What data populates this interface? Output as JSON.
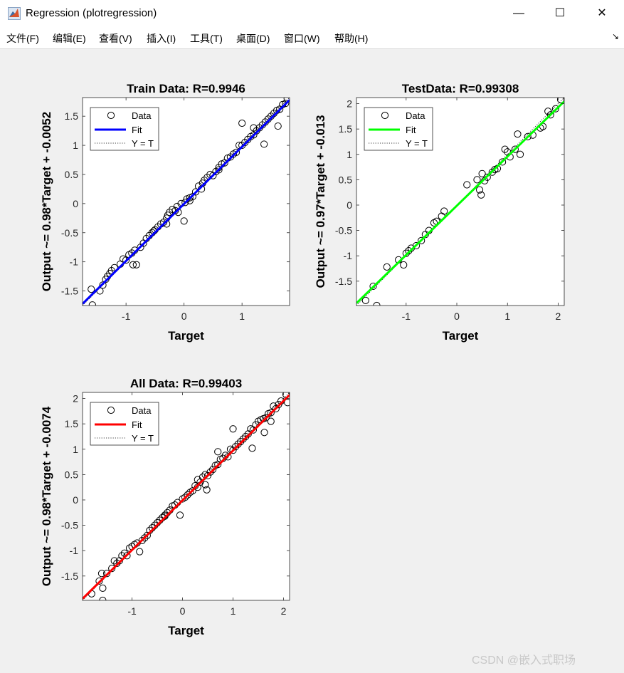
{
  "window": {
    "title": "Regression (plotregression)",
    "controls": {
      "minimize": "—",
      "maximize": "☐",
      "close": "✕"
    }
  },
  "menu": [
    "文件(F)",
    "编辑(E)",
    "查看(V)",
    "插入(I)",
    "工具(T)",
    "桌面(D)",
    "窗口(W)",
    "帮助(H)"
  ],
  "menu_extra_icon": "↘",
  "legend_labels": {
    "data": "Data",
    "fit": "Fit",
    "identity": "Y = T"
  },
  "chart_data": [
    {
      "type": "scatter",
      "title": "Train Data: R=0.9946",
      "xlabel": "Target",
      "ylabel": "Output ~= 0.98*Target + -0.0052",
      "xlim": [
        -1.75,
        1.82
      ],
      "ylim": [
        -1.75,
        1.82
      ],
      "xticks": [
        -1,
        0,
        1
      ],
      "xtick_labels": [
        "-1",
        "0",
        "1"
      ],
      "yticks": [
        -1.5,
        -1,
        -0.5,
        0,
        0.5,
        1,
        1.5
      ],
      "ytick_labels": [
        "-1.5",
        "-1",
        "-0.5",
        "0",
        "0.5",
        "1",
        "1.5"
      ],
      "fit": {
        "slope": 0.98,
        "intercept": -0.0052,
        "color": "#0000ff"
      },
      "legend_position": "top-left",
      "points": [
        [
          -1.6,
          -1.47
        ],
        [
          -1.58,
          -1.74
        ],
        [
          -1.45,
          -1.5
        ],
        [
          -1.4,
          -1.4
        ],
        [
          -1.35,
          -1.3
        ],
        [
          -1.32,
          -1.25
        ],
        [
          -1.28,
          -1.2
        ],
        [
          -1.25,
          -1.15
        ],
        [
          -1.2,
          -1.1
        ],
        [
          -1.1,
          -1.04
        ],
        [
          -1.05,
          -0.95
        ],
        [
          -1.0,
          -0.97
        ],
        [
          -0.95,
          -0.88
        ],
        [
          -0.9,
          -0.85
        ],
        [
          -0.88,
          -1.05
        ],
        [
          -0.85,
          -0.8
        ],
        [
          -0.82,
          -1.05
        ],
        [
          -0.75,
          -0.75
        ],
        [
          -0.7,
          -0.68
        ],
        [
          -0.65,
          -0.6
        ],
        [
          -0.6,
          -0.55
        ],
        [
          -0.55,
          -0.5
        ],
        [
          -0.52,
          -0.47
        ],
        [
          -0.5,
          -0.45
        ],
        [
          -0.45,
          -0.4
        ],
        [
          -0.4,
          -0.35
        ],
        [
          -0.35,
          -0.32
        ],
        [
          -0.3,
          -0.25
        ],
        [
          -0.28,
          -0.2
        ],
        [
          -0.25,
          -0.15
        ],
        [
          -0.2,
          -0.1
        ],
        [
          -0.15,
          -0.12
        ],
        [
          -0.12,
          -0.05
        ],
        [
          -0.1,
          -0.15
        ],
        [
          -0.05,
          0.0
        ],
        [
          0.0,
          -0.3
        ],
        [
          0.02,
          0.02
        ],
        [
          0.05,
          0.08
        ],
        [
          0.1,
          0.1
        ],
        [
          0.15,
          0.12
        ],
        [
          0.2,
          0.2
        ],
        [
          0.25,
          0.3
        ],
        [
          0.3,
          0.25
        ],
        [
          0.32,
          0.35
        ],
        [
          0.35,
          0.4
        ],
        [
          0.4,
          0.45
        ],
        [
          0.45,
          0.5
        ],
        [
          0.5,
          0.48
        ],
        [
          0.55,
          0.55
        ],
        [
          0.6,
          0.62
        ],
        [
          0.65,
          0.68
        ],
        [
          0.7,
          0.7
        ],
        [
          0.75,
          0.78
        ],
        [
          0.8,
          0.8
        ],
        [
          0.85,
          0.85
        ],
        [
          0.9,
          0.88
        ],
        [
          0.95,
          1.0
        ],
        [
          1.0,
          1.0
        ],
        [
          1.05,
          1.05
        ],
        [
          1.1,
          1.1
        ],
        [
          1.15,
          1.15
        ],
        [
          1.2,
          1.18
        ],
        [
          1.25,
          1.25
        ],
        [
          1.3,
          1.3
        ],
        [
          1.35,
          1.35
        ],
        [
          1.4,
          1.4
        ],
        [
          1.45,
          1.45
        ],
        [
          1.5,
          1.5
        ],
        [
          1.55,
          1.55
        ],
        [
          1.6,
          1.6
        ],
        [
          1.65,
          1.62
        ],
        [
          1.7,
          1.7
        ],
        [
          1.75,
          1.72
        ],
        [
          1.78,
          1.8
        ],
        [
          1.0,
          1.38
        ],
        [
          1.38,
          1.02
        ],
        [
          1.62,
          1.33
        ],
        [
          0.1,
          0.05
        ],
        [
          -0.3,
          -0.35
        ],
        [
          0.6,
          0.58
        ],
        [
          1.2,
          1.3
        ]
      ]
    },
    {
      "type": "scatter",
      "title": "TestData: R=0.99308",
      "xlabel": "Target",
      "ylabel": "Output ~= 0.97*Target + -0.013",
      "xlim": [
        -1.98,
        2.12
      ],
      "ylim": [
        -1.98,
        2.12
      ],
      "xticks": [
        -1,
        0,
        1,
        2
      ],
      "xtick_labels": [
        "-1",
        "0",
        "1",
        "2"
      ],
      "yticks": [
        -1.5,
        -1,
        -0.5,
        0,
        0.5,
        1,
        1.5,
        2
      ],
      "ytick_labels": [
        "-1.5",
        "-1",
        "-0.5",
        "0",
        "0.5",
        "1",
        "1.5",
        "2"
      ],
      "fit": {
        "slope": 0.97,
        "intercept": -0.013,
        "color": "#00ff00"
      },
      "legend_position": "top-left",
      "points": [
        [
          -1.8,
          -1.88
        ],
        [
          -1.65,
          -1.6
        ],
        [
          -1.58,
          -1.98
        ],
        [
          -1.38,
          -1.22
        ],
        [
          -1.15,
          -1.08
        ],
        [
          -1.05,
          -1.18
        ],
        [
          -1.0,
          -0.95
        ],
        [
          -0.95,
          -0.9
        ],
        [
          -0.9,
          -0.85
        ],
        [
          -0.8,
          -0.8
        ],
        [
          -0.7,
          -0.7
        ],
        [
          -0.62,
          -0.58
        ],
        [
          -0.55,
          -0.5
        ],
        [
          -0.45,
          -0.35
        ],
        [
          -0.4,
          -0.32
        ],
        [
          -0.3,
          -0.22
        ],
        [
          -0.25,
          -0.12
        ],
        [
          0.2,
          0.4
        ],
        [
          0.4,
          0.5
        ],
        [
          0.45,
          0.3
        ],
        [
          0.48,
          0.2
        ],
        [
          0.5,
          0.62
        ],
        [
          0.55,
          0.48
        ],
        [
          0.6,
          0.55
        ],
        [
          0.7,
          0.65
        ],
        [
          0.75,
          0.7
        ],
        [
          0.8,
          0.72
        ],
        [
          0.9,
          0.85
        ],
        [
          0.95,
          1.1
        ],
        [
          1.0,
          1.05
        ],
        [
          1.05,
          0.95
        ],
        [
          1.15,
          1.1
        ],
        [
          1.2,
          1.4
        ],
        [
          1.25,
          1.0
        ],
        [
          1.4,
          1.35
        ],
        [
          1.5,
          1.38
        ],
        [
          1.65,
          1.52
        ],
        [
          1.7,
          1.55
        ],
        [
          1.8,
          1.85
        ],
        [
          1.85,
          1.78
        ],
        [
          1.95,
          1.9
        ],
        [
          2.05,
          2.08
        ]
      ]
    },
    {
      "type": "scatter",
      "title": "All Data: R=0.99403",
      "xlabel": "Target",
      "ylabel": "Output ~= 0.98*Target + -0.0074",
      "xlim": [
        -1.98,
        2.12
      ],
      "ylim": [
        -1.98,
        2.12
      ],
      "xticks": [
        -1,
        0,
        1,
        2
      ],
      "xtick_labels": [
        "-1",
        "0",
        "1",
        "2"
      ],
      "yticks": [
        -1.5,
        -1,
        -0.5,
        0,
        0.5,
        1,
        1.5,
        2
      ],
      "ytick_labels": [
        "-1.5",
        "-1",
        "-0.5",
        "0",
        "0.5",
        "1",
        "1.5",
        "2"
      ],
      "fit": {
        "slope": 0.98,
        "intercept": -0.0074,
        "color": "#ff0000"
      },
      "legend_position": "top-left",
      "points": [
        [
          -1.8,
          -1.85
        ],
        [
          -1.65,
          -1.6
        ],
        [
          -1.58,
          -1.98
        ],
        [
          -1.6,
          -1.45
        ],
        [
          -1.58,
          -1.74
        ],
        [
          -1.5,
          -1.45
        ],
        [
          -1.4,
          -1.35
        ],
        [
          -1.35,
          -1.2
        ],
        [
          -1.3,
          -1.25
        ],
        [
          -1.25,
          -1.2
        ],
        [
          -1.2,
          -1.1
        ],
        [
          -1.15,
          -1.05
        ],
        [
          -1.1,
          -1.1
        ],
        [
          -1.05,
          -0.95
        ],
        [
          -1.0,
          -0.92
        ],
        [
          -0.95,
          -0.88
        ],
        [
          -0.9,
          -0.85
        ],
        [
          -0.85,
          -1.02
        ],
        [
          -0.8,
          -0.8
        ],
        [
          -0.75,
          -0.75
        ],
        [
          -0.7,
          -0.7
        ],
        [
          -0.65,
          -0.6
        ],
        [
          -0.6,
          -0.55
        ],
        [
          -0.55,
          -0.5
        ],
        [
          -0.5,
          -0.45
        ],
        [
          -0.45,
          -0.4
        ],
        [
          -0.4,
          -0.35
        ],
        [
          -0.35,
          -0.3
        ],
        [
          -0.3,
          -0.25
        ],
        [
          -0.25,
          -0.2
        ],
        [
          -0.2,
          -0.12
        ],
        [
          -0.15,
          -0.1
        ],
        [
          -0.1,
          -0.05
        ],
        [
          -0.05,
          -0.3
        ],
        [
          0.0,
          0.02
        ],
        [
          0.05,
          0.05
        ],
        [
          0.1,
          0.1
        ],
        [
          0.15,
          0.15
        ],
        [
          0.2,
          0.18
        ],
        [
          0.25,
          0.28
        ],
        [
          0.3,
          0.25
        ],
        [
          0.35,
          0.35
        ],
        [
          0.4,
          0.45
        ],
        [
          0.45,
          0.5
        ],
        [
          0.5,
          0.48
        ],
        [
          0.55,
          0.55
        ],
        [
          0.6,
          0.6
        ],
        [
          0.65,
          0.68
        ],
        [
          0.7,
          0.7
        ],
        [
          0.75,
          0.8
        ],
        [
          0.8,
          0.82
        ],
        [
          0.85,
          0.88
        ],
        [
          0.9,
          0.85
        ],
        [
          0.95,
          1.0
        ],
        [
          1.0,
          0.98
        ],
        [
          1.05,
          1.05
        ],
        [
          1.1,
          1.1
        ],
        [
          1.15,
          1.15
        ],
        [
          1.2,
          1.2
        ],
        [
          1.25,
          1.25
        ],
        [
          1.3,
          1.3
        ],
        [
          1.35,
          1.4
        ],
        [
          1.4,
          1.38
        ],
        [
          1.45,
          1.48
        ],
        [
          1.5,
          1.55
        ],
        [
          1.55,
          1.58
        ],
        [
          1.6,
          1.6
        ],
        [
          1.65,
          1.62
        ],
        [
          1.7,
          1.7
        ],
        [
          1.75,
          1.72
        ],
        [
          1.8,
          1.85
        ],
        [
          1.85,
          1.8
        ],
        [
          1.9,
          1.88
        ],
        [
          1.95,
          1.95
        ],
        [
          2.05,
          2.08
        ],
        [
          2.08,
          1.92
        ],
        [
          1.0,
          1.4
        ],
        [
          1.38,
          1.02
        ],
        [
          1.62,
          1.33
        ],
        [
          0.7,
          0.95
        ],
        [
          1.75,
          1.55
        ],
        [
          -0.35,
          -0.32
        ],
        [
          0.3,
          0.4
        ],
        [
          0.45,
          0.3
        ],
        [
          0.48,
          0.2
        ]
      ]
    }
  ],
  "watermark": "CSDN @嵌入式职场"
}
